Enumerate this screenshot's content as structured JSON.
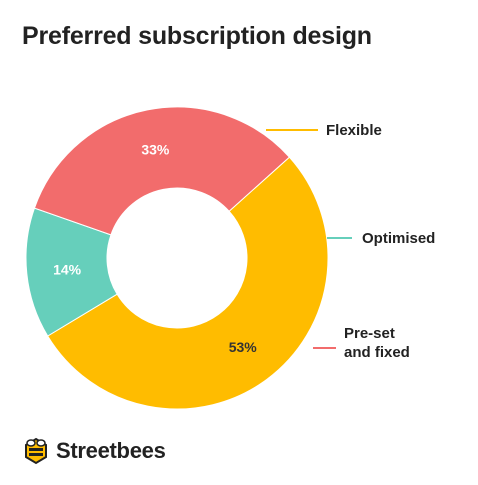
{
  "chart_data": {
    "type": "pie",
    "title": "Preferred subscription design",
    "donut": true,
    "slices": [
      {
        "label": "Flexible",
        "label_lines": [
          "Flexible"
        ],
        "value": 53,
        "value_label": "53%",
        "color": "#FFBC00"
      },
      {
        "label": "Optimised",
        "label_lines": [
          "Optimised"
        ],
        "value": 14,
        "value_label": "14%",
        "color": "#66CFBB"
      },
      {
        "label": "Pre-set and fixed",
        "label_lines": [
          "Pre-set",
          "and fixed"
        ],
        "value": 33,
        "value_label": "33%",
        "color": "#F26C6C"
      }
    ]
  },
  "brand": {
    "name": "Streetbees",
    "icon": "bee-icon"
  }
}
